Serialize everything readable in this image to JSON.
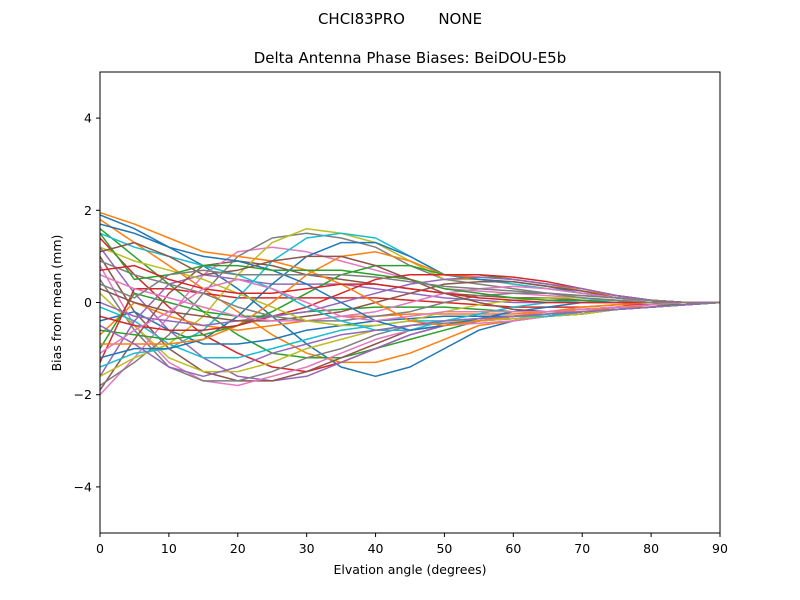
{
  "chart_data": {
    "type": "line",
    "suptitle": "CHCI83PRO       NONE",
    "title": "Delta Antenna Phase Biases: BeiDOU-E5b",
    "xlabel": "Elvation angle (degrees)",
    "ylabel": "Bias from mean (mm)",
    "xlim": [
      0,
      90
    ],
    "ylim": [
      -5,
      5
    ],
    "xticks": [
      0,
      10,
      20,
      30,
      40,
      50,
      60,
      70,
      80,
      90
    ],
    "yticks": [
      -4,
      -2,
      0,
      2,
      4
    ],
    "grid": false,
    "x": [
      0,
      5,
      10,
      15,
      20,
      25,
      30,
      35,
      40,
      45,
      50,
      55,
      60,
      65,
      70,
      75,
      80,
      85,
      90
    ],
    "colors": [
      "#1f77b4",
      "#ff7f0e",
      "#2ca02c",
      "#d62728",
      "#9467bd",
      "#8c564b",
      "#e377c2",
      "#7f7f7f",
      "#bcbd22",
      "#17becf"
    ],
    "series": [
      {
        "values": [
          1.9,
          1.6,
          1.2,
          0.8,
          0.3,
          -0.3,
          -0.9,
          -1.4,
          -1.6,
          -1.4,
          -1.0,
          -0.6,
          -0.4,
          -0.3,
          -0.2,
          -0.15,
          -0.1,
          -0.05,
          0
        ]
      },
      {
        "values": [
          1.8,
          1.3,
          0.8,
          0.3,
          -0.2,
          -0.7,
          -1.1,
          -1.3,
          -1.3,
          -1.1,
          -0.8,
          -0.5,
          -0.4,
          -0.3,
          -0.2,
          -0.15,
          -0.1,
          -0.05,
          0
        ]
      },
      {
        "values": [
          1.6,
          1.0,
          0.4,
          -0.2,
          -0.7,
          -1.1,
          -1.2,
          -1.2,
          -1.0,
          -0.8,
          -0.6,
          -0.4,
          -0.3,
          -0.3,
          -0.2,
          -0.15,
          -0.1,
          -0.05,
          0
        ]
      },
      {
        "values": [
          1.4,
          0.6,
          -0.1,
          -0.7,
          -1.1,
          -1.4,
          -1.5,
          -1.3,
          -1.0,
          -0.7,
          -0.5,
          -0.4,
          -0.3,
          -0.3,
          -0.2,
          -0.15,
          -0.1,
          -0.05,
          0
        ]
      },
      {
        "values": [
          1.2,
          0.2,
          -0.6,
          -1.2,
          -1.6,
          -1.7,
          -1.6,
          -1.3,
          -1.0,
          -0.7,
          -0.5,
          -0.4,
          -0.35,
          -0.3,
          -0.25,
          -0.15,
          -0.1,
          -0.05,
          0
        ]
      },
      {
        "values": [
          1.0,
          -0.2,
          -1.0,
          -1.5,
          -1.7,
          -1.7,
          -1.5,
          -1.2,
          -0.9,
          -0.6,
          -0.5,
          -0.4,
          -0.35,
          -0.3,
          -0.25,
          -0.15,
          -0.1,
          -0.05,
          0
        ]
      },
      {
        "values": [
          0.8,
          -0.5,
          -1.3,
          -1.7,
          -1.8,
          -1.6,
          -1.4,
          -1.1,
          -0.8,
          -0.6,
          -0.5,
          -0.45,
          -0.4,
          -0.3,
          -0.25,
          -0.15,
          -0.1,
          -0.05,
          0
        ]
      },
      {
        "values": [
          0.5,
          -0.6,
          -1.4,
          -1.7,
          -1.7,
          -1.5,
          -1.2,
          -1.0,
          -0.7,
          -0.5,
          -0.45,
          -0.4,
          -0.35,
          -0.3,
          -0.25,
          -0.15,
          -0.1,
          -0.05,
          0
        ]
      },
      {
        "values": [
          0.2,
          -0.5,
          -1.2,
          -1.5,
          -1.5,
          -1.3,
          -1.0,
          -0.8,
          -0.6,
          -0.5,
          -0.4,
          -0.4,
          -0.35,
          -0.3,
          -0.25,
          -0.15,
          -0.1,
          -0.05,
          0
        ]
      },
      {
        "values": [
          -0.1,
          -0.4,
          -0.9,
          -1.2,
          -1.2,
          -1.0,
          -0.8,
          -0.6,
          -0.5,
          -0.4,
          -0.4,
          -0.35,
          -0.3,
          -0.3,
          -0.2,
          -0.15,
          -0.1,
          -0.05,
          0
        ]
      },
      {
        "values": [
          -0.4,
          -0.2,
          -0.6,
          -0.9,
          -0.9,
          -0.8,
          -0.6,
          -0.5,
          -0.4,
          -0.35,
          -0.3,
          -0.3,
          -0.3,
          -0.25,
          -0.2,
          -0.15,
          -0.1,
          -0.05,
          0
        ]
      },
      {
        "values": [
          -0.7,
          0.0,
          -0.3,
          -0.5,
          -0.6,
          -0.5,
          -0.4,
          -0.3,
          -0.3,
          -0.25,
          -0.25,
          -0.25,
          -0.25,
          -0.2,
          -0.2,
          -0.1,
          -0.1,
          -0.05,
          0
        ]
      },
      {
        "values": [
          -1.0,
          0.2,
          0.0,
          -0.2,
          -0.3,
          -0.3,
          -0.2,
          -0.15,
          -0.1,
          -0.1,
          -0.1,
          -0.15,
          -0.2,
          -0.2,
          -0.15,
          -0.1,
          -0.05,
          -0.05,
          0
        ]
      },
      {
        "values": [
          -1.3,
          0.3,
          0.3,
          0.2,
          0.1,
          0.1,
          0.1,
          0.1,
          0.1,
          0.05,
          0.0,
          -0.05,
          -0.1,
          -0.1,
          -0.1,
          -0.05,
          -0.05,
          0.0,
          0
        ]
      },
      {
        "values": [
          -1.6,
          -0.4,
          0.4,
          0.6,
          0.5,
          0.4,
          0.4,
          0.4,
          0.3,
          0.2,
          0.1,
          0.05,
          0.0,
          0.0,
          0.0,
          0.0,
          0.0,
          0.0,
          0
        ]
      },
      {
        "values": [
          -1.9,
          -0.8,
          0.2,
          0.8,
          0.9,
          0.8,
          0.6,
          0.5,
          0.4,
          0.3,
          0.2,
          0.15,
          0.1,
          0.1,
          0.05,
          0.05,
          0.0,
          0.0,
          0
        ]
      },
      {
        "values": [
          -2.0,
          -1.2,
          -0.3,
          0.6,
          1.1,
          1.2,
          1.1,
          0.9,
          0.7,
          0.5,
          0.3,
          0.25,
          0.2,
          0.15,
          0.1,
          0.05,
          0.05,
          0.0,
          0
        ]
      },
      {
        "values": [
          -1.8,
          -1.3,
          -0.7,
          0.2,
          1.0,
          1.4,
          1.5,
          1.4,
          1.2,
          0.8,
          0.5,
          0.4,
          0.3,
          0.2,
          0.15,
          0.1,
          0.05,
          0.0,
          0
        ]
      },
      {
        "values": [
          -1.6,
          -1.2,
          -0.9,
          -0.3,
          0.6,
          1.3,
          1.6,
          1.5,
          1.3,
          0.9,
          0.5,
          0.5,
          0.4,
          0.3,
          0.2,
          0.1,
          0.05,
          0.0,
          0
        ]
      },
      {
        "values": [
          -1.4,
          -1.1,
          -1.0,
          -0.6,
          0.1,
          0.9,
          1.4,
          1.5,
          1.4,
          1.0,
          0.6,
          0.5,
          0.4,
          0.3,
          0.2,
          0.1,
          0.05,
          0.0,
          0
        ]
      },
      {
        "values": [
          -1.2,
          -1.0,
          -1.0,
          -0.8,
          -0.3,
          0.4,
          1.0,
          1.3,
          1.3,
          1.0,
          0.6,
          0.5,
          0.45,
          0.35,
          0.2,
          0.1,
          0.05,
          0.0,
          0
        ]
      },
      {
        "values": [
          -0.9,
          -0.9,
          -0.9,
          -0.8,
          -0.5,
          0.0,
          0.6,
          1.0,
          1.1,
          0.9,
          0.6,
          0.55,
          0.5,
          0.4,
          0.25,
          0.15,
          0.05,
          0.0,
          0
        ]
      },
      {
        "values": [
          -0.6,
          -0.7,
          -0.8,
          -0.7,
          -0.5,
          -0.2,
          0.2,
          0.6,
          0.8,
          0.8,
          0.6,
          0.6,
          0.5,
          0.4,
          0.3,
          0.15,
          0.05,
          0.0,
          0
        ]
      },
      {
        "values": [
          -0.3,
          -0.5,
          -0.6,
          -0.6,
          -0.5,
          -0.3,
          -0.1,
          0.2,
          0.5,
          0.6,
          0.6,
          0.6,
          0.55,
          0.45,
          0.3,
          0.15,
          0.05,
          0.0,
          0
        ]
      },
      {
        "values": [
          0.0,
          -0.3,
          -0.4,
          -0.5,
          -0.4,
          -0.3,
          -0.2,
          0.0,
          0.2,
          0.4,
          0.5,
          0.55,
          0.5,
          0.4,
          0.3,
          0.15,
          0.05,
          0.0,
          0
        ]
      },
      {
        "values": [
          0.3,
          0.0,
          -0.2,
          -0.3,
          -0.4,
          -0.4,
          -0.3,
          -0.2,
          0.0,
          0.2,
          0.4,
          0.45,
          0.45,
          0.35,
          0.25,
          0.1,
          0.05,
          0.0,
          0
        ]
      },
      {
        "values": [
          0.6,
          0.3,
          0.1,
          -0.1,
          -0.3,
          -0.4,
          -0.4,
          -0.3,
          -0.2,
          0.0,
          0.2,
          0.3,
          0.35,
          0.3,
          0.2,
          0.1,
          0.05,
          0.0,
          0
        ]
      },
      {
        "values": [
          0.9,
          0.6,
          0.4,
          0.2,
          -0.1,
          -0.3,
          -0.4,
          -0.4,
          -0.3,
          -0.2,
          0.0,
          0.15,
          0.2,
          0.2,
          0.15,
          0.1,
          0.05,
          0.0,
          0
        ]
      },
      {
        "values": [
          1.2,
          0.9,
          0.7,
          0.5,
          0.2,
          -0.1,
          -0.4,
          -0.5,
          -0.5,
          -0.4,
          -0.2,
          -0.05,
          0.05,
          0.1,
          0.1,
          0.05,
          0.0,
          0.0,
          0
        ]
      },
      {
        "values": [
          1.5,
          1.2,
          1.0,
          0.8,
          0.6,
          0.3,
          -0.1,
          -0.4,
          -0.6,
          -0.6,
          -0.4,
          -0.25,
          -0.1,
          0.0,
          0.05,
          0.05,
          0.0,
          0.0,
          0
        ]
      },
      {
        "values": [
          1.7,
          1.5,
          1.2,
          1.0,
          0.9,
          0.7,
          0.4,
          0.0,
          -0.4,
          -0.6,
          -0.5,
          -0.35,
          -0.2,
          -0.1,
          0.0,
          0.0,
          0.0,
          0.0,
          0
        ]
      },
      {
        "values": [
          1.95,
          1.7,
          1.4,
          1.1,
          1.0,
          0.9,
          0.7,
          0.4,
          0.0,
          -0.4,
          -0.5,
          -0.4,
          -0.3,
          -0.2,
          -0.1,
          -0.05,
          0.0,
          0.0,
          0
        ]
      },
      {
        "values": [
          1.5,
          0.5,
          0.6,
          0.8,
          0.8,
          0.7,
          0.7,
          0.7,
          0.6,
          0.5,
          0.3,
          0.2,
          0.1,
          0.05,
          0.05,
          0.0,
          0.0,
          0.0,
          0
        ]
      },
      {
        "values": [
          0.7,
          0.8,
          0.5,
          0.3,
          0.2,
          0.2,
          0.3,
          0.4,
          0.4,
          0.3,
          0.2,
          0.1,
          0.05,
          0.0,
          0.0,
          0.0,
          0.0,
          0.0,
          0
        ]
      },
      {
        "values": [
          -0.5,
          -0.9,
          -1.4,
          -1.6,
          -1.4,
          -1.1,
          -0.9,
          -0.7,
          -0.6,
          -0.5,
          -0.4,
          -0.35,
          -0.3,
          -0.25,
          -0.2,
          -0.15,
          -0.1,
          -0.05,
          0
        ]
      },
      {
        "values": [
          1.1,
          1.3,
          1.0,
          0.6,
          0.7,
          0.9,
          1.0,
          1.0,
          0.8,
          0.5,
          0.2,
          0.0,
          -0.15,
          -0.2,
          -0.15,
          -0.1,
          -0.05,
          0.0,
          0
        ]
      },
      {
        "values": [
          -1.1,
          -0.6,
          -0.2,
          0.3,
          0.5,
          0.3,
          0.0,
          -0.3,
          -0.4,
          -0.3,
          -0.2,
          -0.2,
          -0.2,
          -0.2,
          -0.15,
          -0.1,
          -0.05,
          0.0,
          0
        ]
      },
      {
        "values": [
          0.4,
          0.1,
          0.6,
          0.7,
          0.6,
          0.6,
          0.6,
          0.6,
          0.55,
          0.45,
          0.35,
          0.3,
          0.25,
          0.2,
          0.1,
          0.05,
          0.0,
          0.0,
          0
        ]
      }
    ]
  }
}
